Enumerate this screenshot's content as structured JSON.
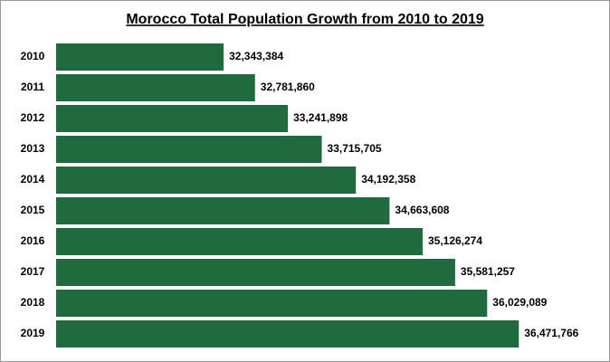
{
  "chart_data": {
    "type": "bar",
    "orientation": "horizontal",
    "title": "Morocco Total Population Growth from 2010 to 2019",
    "categories": [
      "2010",
      "2011",
      "2012",
      "2013",
      "2014",
      "2015",
      "2016",
      "2017",
      "2018",
      "2019"
    ],
    "values": [
      32343384,
      32781860,
      33241898,
      33715705,
      34192358,
      34663608,
      35126274,
      35581257,
      36029089,
      36471766
    ],
    "value_labels": [
      "32,343,384",
      "32,781,860",
      "33,241,898",
      "33,715,705",
      "34,192,358",
      "34,663,608",
      "35,126,274",
      "35,581,257",
      "36,029,089",
      "36,471,766"
    ],
    "color": "#1f6b3d",
    "xlim": [
      30000000,
      37500000
    ]
  }
}
